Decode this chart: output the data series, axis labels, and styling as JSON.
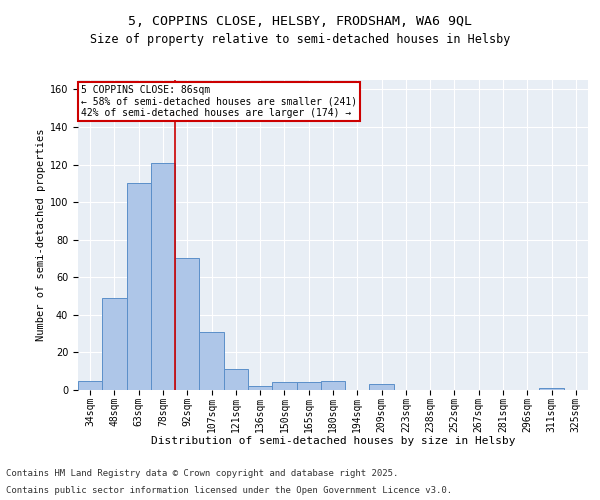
{
  "title1": "5, COPPINS CLOSE, HELSBY, FRODSHAM, WA6 9QL",
  "title2": "Size of property relative to semi-detached houses in Helsby",
  "xlabel": "Distribution of semi-detached houses by size in Helsby",
  "ylabel": "Number of semi-detached properties",
  "categories": [
    "34sqm",
    "48sqm",
    "63sqm",
    "78sqm",
    "92sqm",
    "107sqm",
    "121sqm",
    "136sqm",
    "150sqm",
    "165sqm",
    "180sqm",
    "194sqm",
    "209sqm",
    "223sqm",
    "238sqm",
    "252sqm",
    "267sqm",
    "281sqm",
    "296sqm",
    "311sqm",
    "325sqm"
  ],
  "values": [
    5,
    49,
    110,
    121,
    70,
    31,
    11,
    2,
    4,
    4,
    5,
    0,
    3,
    0,
    0,
    0,
    0,
    0,
    0,
    1,
    0
  ],
  "bar_color": "#aec6e8",
  "bar_edge_color": "#5b8fc9",
  "property_line_x": 3.5,
  "annotation_title": "5 COPPINS CLOSE: 86sqm",
  "annotation_line1": "← 58% of semi-detached houses are smaller (241)",
  "annotation_line2": "42% of semi-detached houses are larger (174) →",
  "annotation_box_color": "#ffffff",
  "annotation_box_edge": "#cc0000",
  "vline_color": "#cc0000",
  "footer1": "Contains HM Land Registry data © Crown copyright and database right 2025.",
  "footer2": "Contains public sector information licensed under the Open Government Licence v3.0.",
  "ylim": [
    0,
    165
  ],
  "yticks": [
    0,
    20,
    40,
    60,
    80,
    100,
    120,
    140,
    160
  ],
  "bg_color": "#e8eef5",
  "title1_fontsize": 9.5,
  "title2_fontsize": 8.5,
  "xlabel_fontsize": 8,
  "ylabel_fontsize": 7.5,
  "tick_fontsize": 7,
  "annot_fontsize": 7,
  "footer_fontsize": 6.5
}
